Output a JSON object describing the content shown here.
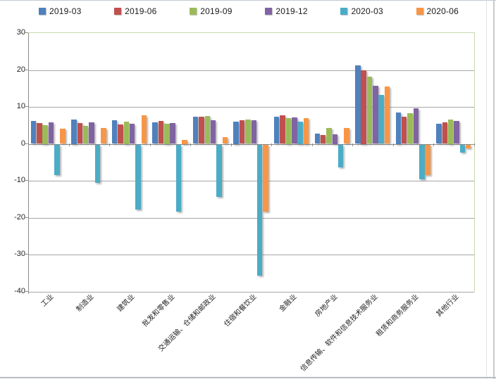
{
  "chart_data": {
    "type": "bar",
    "title": "",
    "xlabel": "",
    "ylabel": "",
    "categories": [
      "工业",
      "制造业",
      "建筑业",
      "批发和零售业",
      "交通运输、仓储和邮政业",
      "住宿和餐饮业",
      "金融业",
      "房地产业",
      "信息传输、软件和信息技术服务业",
      "租赁和商务服务业",
      "其他行业"
    ],
    "series": [
      {
        "name": "2019-03",
        "color": "#4F81BD",
        "values": [
          6.1,
          6.5,
          6.3,
          5.9,
          7.4,
          6.0,
          7.3,
          2.7,
          21.2,
          8.5,
          5.4
        ]
      },
      {
        "name": "2019-06",
        "color": "#C0504D",
        "values": [
          5.7,
          5.6,
          5.2,
          6.1,
          7.4,
          6.4,
          7.8,
          2.4,
          20.0,
          7.4,
          5.8
        ]
      },
      {
        "name": "2019-09",
        "color": "#9BBB59",
        "values": [
          5.0,
          4.8,
          6.0,
          5.5,
          7.6,
          6.6,
          7.0,
          4.3,
          18.1,
          8.3,
          6.5
        ]
      },
      {
        "name": "2019-12",
        "color": "#8064A2",
        "values": [
          5.9,
          5.8,
          5.4,
          5.6,
          6.3,
          6.3,
          7.2,
          2.5,
          15.7,
          9.7,
          6.2
        ]
      },
      {
        "name": "2020-03",
        "color": "#4BACC6",
        "values": [
          -8.2,
          -10.3,
          -17.6,
          -18.2,
          -14.1,
          -35.5,
          6.0,
          -6.1,
          13.2,
          -9.5,
          -2.1
        ]
      },
      {
        "name": "2020-06",
        "color": "#F79646",
        "values": [
          4.1,
          4.3,
          7.8,
          1.0,
          1.8,
          -18.1,
          7.0,
          4.2,
          15.6,
          -8.2,
          -1.0
        ]
      }
    ],
    "ylim": [
      -40,
      30
    ],
    "y_ticks": [
      30,
      20,
      10,
      0,
      -10,
      -20,
      -30,
      -40
    ],
    "grid": true,
    "legend_position": "top"
  },
  "colors": {
    "gridline": "#A6A6A6",
    "zero_line": "#8A8A8A",
    "plot_border_green": "#C6D9B0",
    "background": "#FFFFFF"
  }
}
